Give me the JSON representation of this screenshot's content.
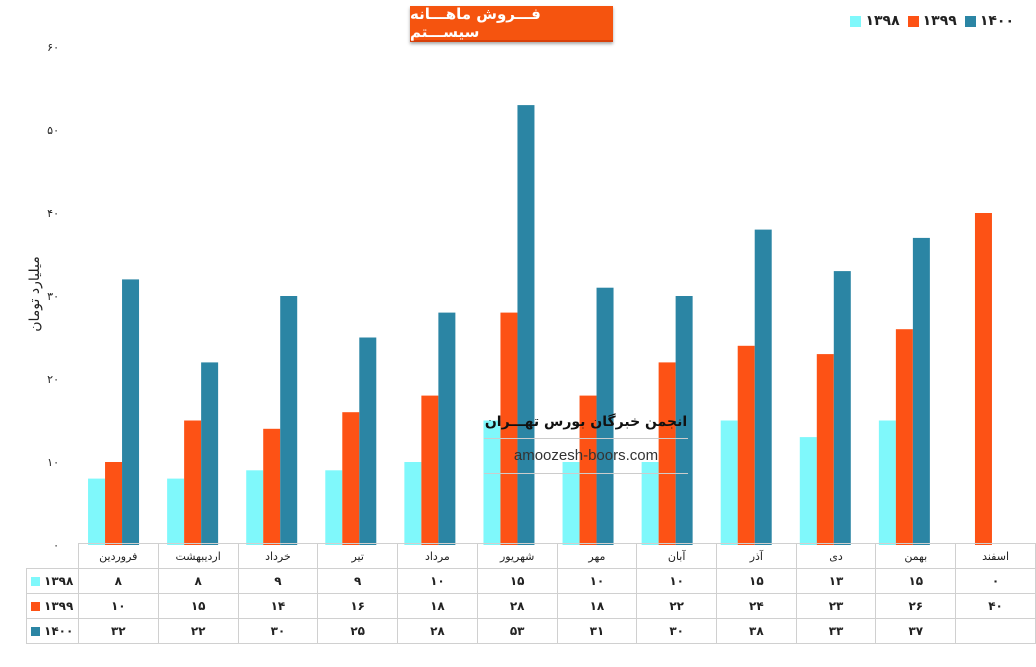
{
  "chart_data": {
    "type": "bar",
    "title": "فـــروش ماهـــانه سیســـتم",
    "ylabel": "میلیارد تومان",
    "ylim": [
      0,
      60
    ],
    "y_ticks": [
      "۰",
      "۱۰",
      "۲۰",
      "۳۰",
      "۴۰",
      "۵۰",
      "۶۰"
    ],
    "categories": [
      "فروردین",
      "اردیبهشت",
      "خرداد",
      "تیر",
      "مرداد",
      "شهریور",
      "مهر",
      "آبان",
      "آذر",
      "دی",
      "بهمن",
      "اسفند"
    ],
    "series": [
      {
        "name": "۱۳۹۸",
        "color": "#7ff8fb",
        "values": [
          8,
          8,
          9,
          9,
          10,
          15,
          10,
          10,
          15,
          13,
          15,
          0
        ],
        "labels": [
          "۸",
          "۸",
          "۹",
          "۹",
          "۱۰",
          "۱۵",
          "۱۰",
          "۱۰",
          "۱۵",
          "۱۳",
          "۱۵",
          "۰"
        ]
      },
      {
        "name": "۱۳۹۹",
        "color": "#fd5215",
        "values": [
          10,
          15,
          14,
          16,
          18,
          28,
          18,
          22,
          24,
          23,
          26,
          40
        ],
        "labels": [
          "۱۰",
          "۱۵",
          "۱۴",
          "۱۶",
          "۱۸",
          "۲۸",
          "۱۸",
          "۲۲",
          "۲۴",
          "۲۳",
          "۲۶",
          "۴۰"
        ]
      },
      {
        "name": "۱۴۰۰",
        "color": "#2b85a4",
        "values": [
          32,
          22,
          30,
          25,
          28,
          53,
          31,
          30,
          38,
          33,
          37,
          null
        ],
        "labels": [
          "۳۲",
          "۲۲",
          "۳۰",
          "۲۵",
          "۲۸",
          "۵۳",
          "۳۱",
          "۳۰",
          "۳۸",
          "۳۳",
          "۳۷",
          ""
        ]
      }
    ],
    "legend": "top-right",
    "grid": false
  },
  "watermark": {
    "persian": "انجمن خبرگان بورس تهـــران",
    "url": "amoozesh-boors.com"
  }
}
